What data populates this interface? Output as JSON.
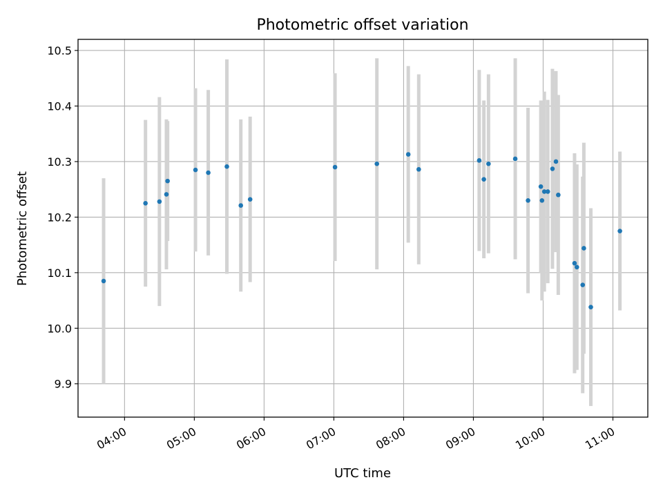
{
  "chart_data": {
    "type": "scatter",
    "title": "Photometric offset variation",
    "xlabel": "UTC time",
    "ylabel": "Photometric offset",
    "x_axis_kind": "time",
    "xlim": [
      "03:20",
      "11:30"
    ],
    "ylim": [
      9.84,
      10.52
    ],
    "x_ticks": [
      "04:00",
      "05:00",
      "06:00",
      "07:00",
      "08:00",
      "09:00",
      "10:00",
      "11:00"
    ],
    "y_ticks": [
      "9.9",
      "10.0",
      "10.1",
      "10.2",
      "10.3",
      "10.4",
      "10.5"
    ],
    "grid": true,
    "marker_color": "#1f77b4",
    "errorbar_color": "#d3d3d3",
    "series": [
      {
        "points": [
          {
            "x": "03:42",
            "y": 10.085,
            "err": 0.185
          },
          {
            "x": "04:18",
            "y": 10.225,
            "err": 0.15
          },
          {
            "x": "04:30",
            "y": 10.228,
            "err": 0.188
          },
          {
            "x": "04:36",
            "y": 10.241,
            "err": 0.135
          },
          {
            "x": "04:37",
            "y": 10.265,
            "err": 0.108
          },
          {
            "x": "05:01",
            "y": 10.285,
            "err": 0.147
          },
          {
            "x": "05:12",
            "y": 10.28,
            "err": 0.149
          },
          {
            "x": "05:28",
            "y": 10.291,
            "err": 0.193
          },
          {
            "x": "05:40",
            "y": 10.221,
            "err": 0.155
          },
          {
            "x": "05:48",
            "y": 10.232,
            "err": 0.149
          },
          {
            "x": "07:01",
            "y": 10.29,
            "err": 0.169
          },
          {
            "x": "07:37",
            "y": 10.296,
            "err": 0.19
          },
          {
            "x": "08:04",
            "y": 10.313,
            "err": 0.159
          },
          {
            "x": "08:13",
            "y": 10.286,
            "err": 0.171
          },
          {
            "x": "09:05",
            "y": 10.302,
            "err": 0.163
          },
          {
            "x": "09:09",
            "y": 10.268,
            "err": 0.142
          },
          {
            "x": "09:13",
            "y": 10.296,
            "err": 0.161
          },
          {
            "x": "09:36",
            "y": 10.305,
            "err": 0.181
          },
          {
            "x": "09:47",
            "y": 10.23,
            "err": 0.167
          },
          {
            "x": "09:58",
            "y": 10.255,
            "err": 0.155
          },
          {
            "x": "09:59",
            "y": 10.23,
            "err": 0.18
          },
          {
            "x": "10:01",
            "y": 10.246,
            "err": 0.18
          },
          {
            "x": "10:04",
            "y": 10.246,
            "err": 0.165
          },
          {
            "x": "10:08",
            "y": 10.287,
            "err": 0.18
          },
          {
            "x": "10:11",
            "y": 10.3,
            "err": 0.163
          },
          {
            "x": "10:13",
            "y": 10.24,
            "err": 0.18
          },
          {
            "x": "10:27",
            "y": 10.117,
            "err": 0.198
          },
          {
            "x": "10:29",
            "y": 10.11,
            "err": 0.185
          },
          {
            "x": "10:34",
            "y": 10.078,
            "err": 0.195
          },
          {
            "x": "10:35",
            "y": 10.144,
            "err": 0.19
          },
          {
            "x": "10:41",
            "y": 10.038,
            "err": 0.178
          },
          {
            "x": "11:06",
            "y": 10.175,
            "err": 0.143
          }
        ]
      }
    ]
  }
}
